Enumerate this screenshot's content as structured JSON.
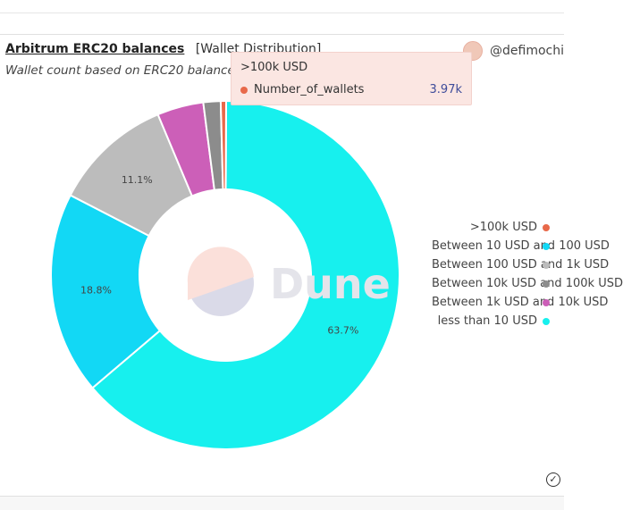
{
  "header": {
    "title": "Arbitrum ERC20 balances",
    "tag": "[Wallet Distribution]",
    "subtitle": "Wallet count based on ERC20 balance"
  },
  "author": {
    "handle": "@defimochi"
  },
  "tooltip": {
    "category": ">100k USD",
    "series": "Number_of_wallets",
    "value": "3.97k",
    "dot_color": "#e8694a"
  },
  "watermark": "Dune",
  "chart_data": {
    "type": "pie",
    "donut": true,
    "series_name": "Number_of_wallets",
    "legend_position": "right",
    "slices": [
      {
        "label": "less than 10 USD",
        "value": 63.7,
        "percent_label": "63.7%",
        "color": "#17f0ee"
      },
      {
        "label": "Between 10 USD and 100 USD",
        "value": 18.8,
        "percent_label": "18.8%",
        "color": "#12d8f5"
      },
      {
        "label": "Between 100 USD and 1k USD",
        "value": 11.1,
        "percent_label": "11.1%",
        "color": "#bcbcbc"
      },
      {
        "label": "Between 1k USD and 10k USD",
        "value": 4.3,
        "percent_label": "",
        "color": "#cc5fb8"
      },
      {
        "label": "Between 10k USD and 100k USD",
        "value": 1.6,
        "percent_label": "",
        "color": "#8c8c8c"
      },
      {
        "label": ">100k USD",
        "value": 0.5,
        "percent_label": "",
        "color": "#e8694a"
      }
    ],
    "legend": [
      {
        "label": ">100k USD",
        "color": "#e8694a"
      },
      {
        "label": "Between 10 USD and 100 USD",
        "color": "#12d8f5"
      },
      {
        "label": "Between 100 USD and 1k USD",
        "color": "#bcbcbc"
      },
      {
        "label": "Between 10k USD and 100k USD",
        "color": "#8c8c8c"
      },
      {
        "label": "Between 1k USD and 10k USD",
        "color": "#cc5fb8"
      },
      {
        "label": "less than 10 USD",
        "color": "#17f0ee"
      }
    ]
  }
}
